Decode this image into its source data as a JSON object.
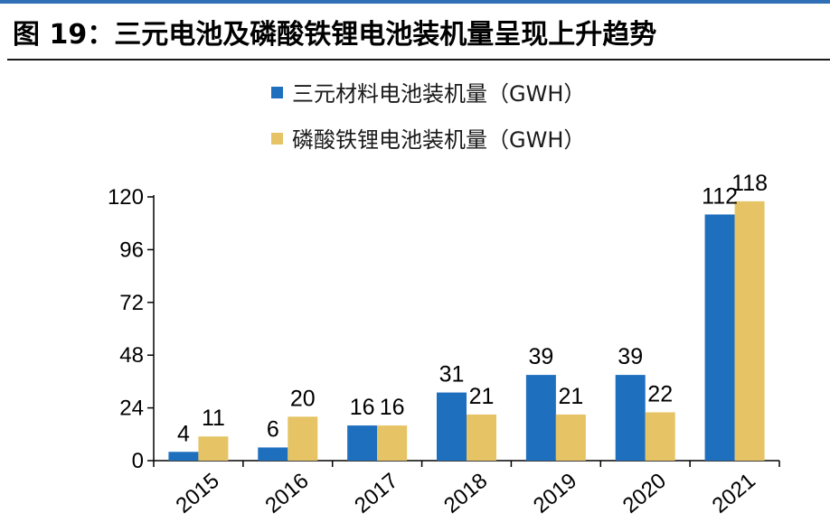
{
  "chart_data": {
    "type": "bar",
    "title": "图 19：三元电池及磷酸铁锂电池装机量呈现上升趋势",
    "categories": [
      "2015",
      "2016",
      "2017",
      "2018",
      "2019",
      "2020",
      "2021"
    ],
    "series": [
      {
        "name": "三元材料电池装机量（GWH）",
        "color": "#1f6fbf",
        "values": [
          4,
          6,
          16,
          31,
          39,
          39,
          112
        ]
      },
      {
        "name": "磷酸铁锂电池装机量（GWH）",
        "color": "#e6c465",
        "values": [
          11,
          20,
          16,
          21,
          21,
          22,
          118
        ]
      }
    ],
    "yticks": [
      0,
      24,
      48,
      72,
      96,
      120
    ],
    "ylim": [
      0,
      120
    ],
    "xlabel": "",
    "ylabel": "",
    "grid": false,
    "legend_position": "top-left",
    "accent_color": "#2e6fb5"
  }
}
